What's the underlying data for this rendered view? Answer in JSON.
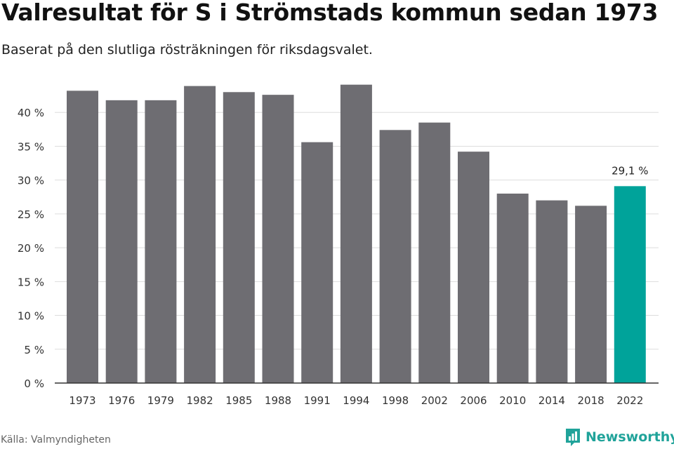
{
  "title": "Valresultat för S i Strömstads kommun sedan 1973",
  "subtitle": "Baserat på den slutliga rösträkningen för riksdagsvalet.",
  "source": "Källa: Valmyndigheten",
  "brand": {
    "name": "Newsworthy",
    "icon": "newsworthy-logo-icon"
  },
  "colors": {
    "bar": "#6e6d72",
    "highlight": "#00a39a",
    "grid": "#dddddd",
    "axis": "#333333",
    "brand": "#20a39a"
  },
  "chart_data": {
    "type": "bar",
    "categories": [
      "1973",
      "1976",
      "1979",
      "1982",
      "1985",
      "1988",
      "1991",
      "1994",
      "1998",
      "2002",
      "2006",
      "2010",
      "2014",
      "2018",
      "2022"
    ],
    "values": [
      43.2,
      41.8,
      41.8,
      43.9,
      43.0,
      42.6,
      35.6,
      44.1,
      37.4,
      38.5,
      34.2,
      28.0,
      27.0,
      26.2,
      29.1
    ],
    "highlight_index": 14,
    "data_labels": [
      {
        "index": 14,
        "text": "29,1 %"
      }
    ],
    "y_ticks": [
      "0 %",
      "5 %",
      "10 %",
      "15 %",
      "20 %",
      "25 %",
      "30 %",
      "35 %",
      "40 %"
    ],
    "y_tick_values": [
      0,
      5,
      10,
      15,
      20,
      25,
      30,
      35,
      40
    ],
    "ylim": [
      0,
      45
    ],
    "grid": true,
    "xlabel": "",
    "ylabel": ""
  }
}
